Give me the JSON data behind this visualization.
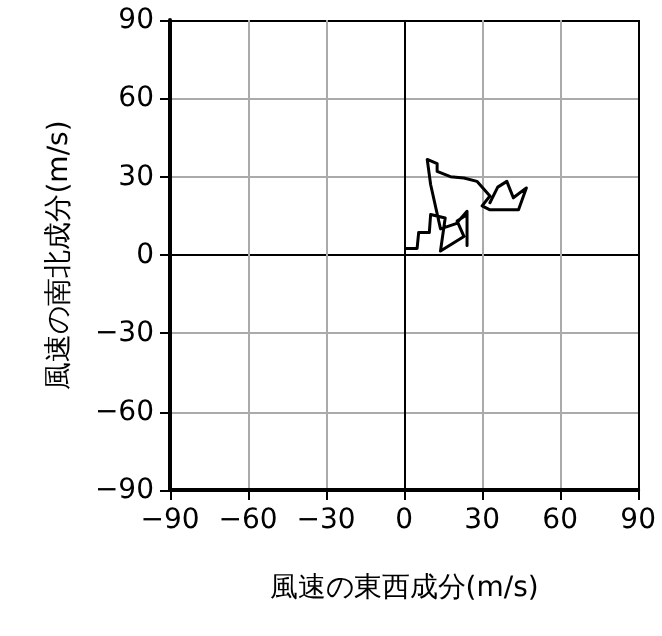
{
  "chart_data": {
    "type": "line",
    "xlabel": "風速の東西成分(m/s)",
    "ylabel": "風速の南北成分(m/s)",
    "xlim": [
      -90,
      90
    ],
    "ylim": [
      -90,
      90
    ],
    "xticks": [
      -90,
      -60,
      -30,
      0,
      30,
      60,
      90
    ],
    "yticks": [
      -90,
      -60,
      -30,
      0,
      30,
      60,
      90
    ],
    "grid": true,
    "marker": "none",
    "line_style": "solid",
    "series": [
      {
        "color": "#000000",
        "x": [
          0.5,
          5,
          5.6,
          9.7,
          10.2,
          15.8,
          14,
          23,
          20.4,
          24.2,
          24.2,
          24.2,
          20,
          14,
          10.2,
          8.9,
          12.7,
          12.7,
          17.8,
          23,
          28,
          33,
          30,
          33,
          44,
          47,
          42,
          39.5,
          36,
          33
        ],
        "values": [
          2.5,
          2.5,
          8.6,
          8.6,
          15.5,
          14.2,
          1.5,
          7.1,
          13,
          15.5,
          3.6,
          16.8,
          12,
          10,
          27,
          36.6,
          35,
          32,
          30,
          29.5,
          28.2,
          22.6,
          18.8,
          17.3,
          17.3,
          25.7,
          21.9,
          28.2,
          26,
          20
        ]
      }
    ]
  }
}
